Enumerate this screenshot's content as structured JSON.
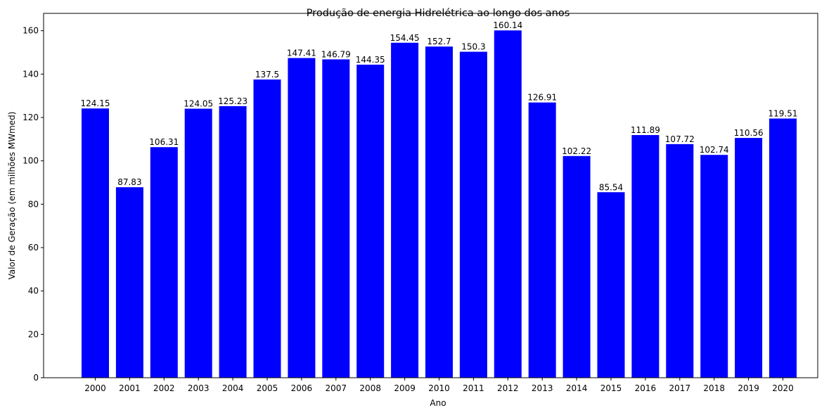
{
  "chart_data": {
    "type": "bar",
    "title": "Produção de energia Hidrelétrica ao longo dos anos",
    "xlabel": "Ano",
    "ylabel": "Valor de Geração (em milhões MWmed)",
    "categories": [
      "2000",
      "2001",
      "2002",
      "2003",
      "2004",
      "2005",
      "2006",
      "2007",
      "2008",
      "2009",
      "2010",
      "2011",
      "2012",
      "2013",
      "2014",
      "2015",
      "2016",
      "2017",
      "2018",
      "2019",
      "2020"
    ],
    "values": [
      124.15,
      87.83,
      106.31,
      124.05,
      125.23,
      137.5,
      147.41,
      146.79,
      144.35,
      154.45,
      152.7,
      150.3,
      160.14,
      126.91,
      102.22,
      85.54,
      111.89,
      107.72,
      102.74,
      110.56,
      119.51
    ],
    "value_labels": [
      "124.15",
      "87.83",
      "106.31",
      "124.05",
      "125.23",
      "137.5",
      "147.41",
      "146.79",
      "144.35",
      "154.45",
      "152.7",
      "150.3",
      "160.14",
      "126.91",
      "102.22",
      "85.54",
      "111.89",
      "107.72",
      "102.74",
      "110.56",
      "119.51"
    ],
    "ylim": [
      0,
      168
    ],
    "yticks": [
      "0",
      "20",
      "40",
      "60",
      "80",
      "100",
      "120",
      "140",
      "160"
    ],
    "bar_color": "#0000ff",
    "grid": false,
    "legend": "none"
  }
}
